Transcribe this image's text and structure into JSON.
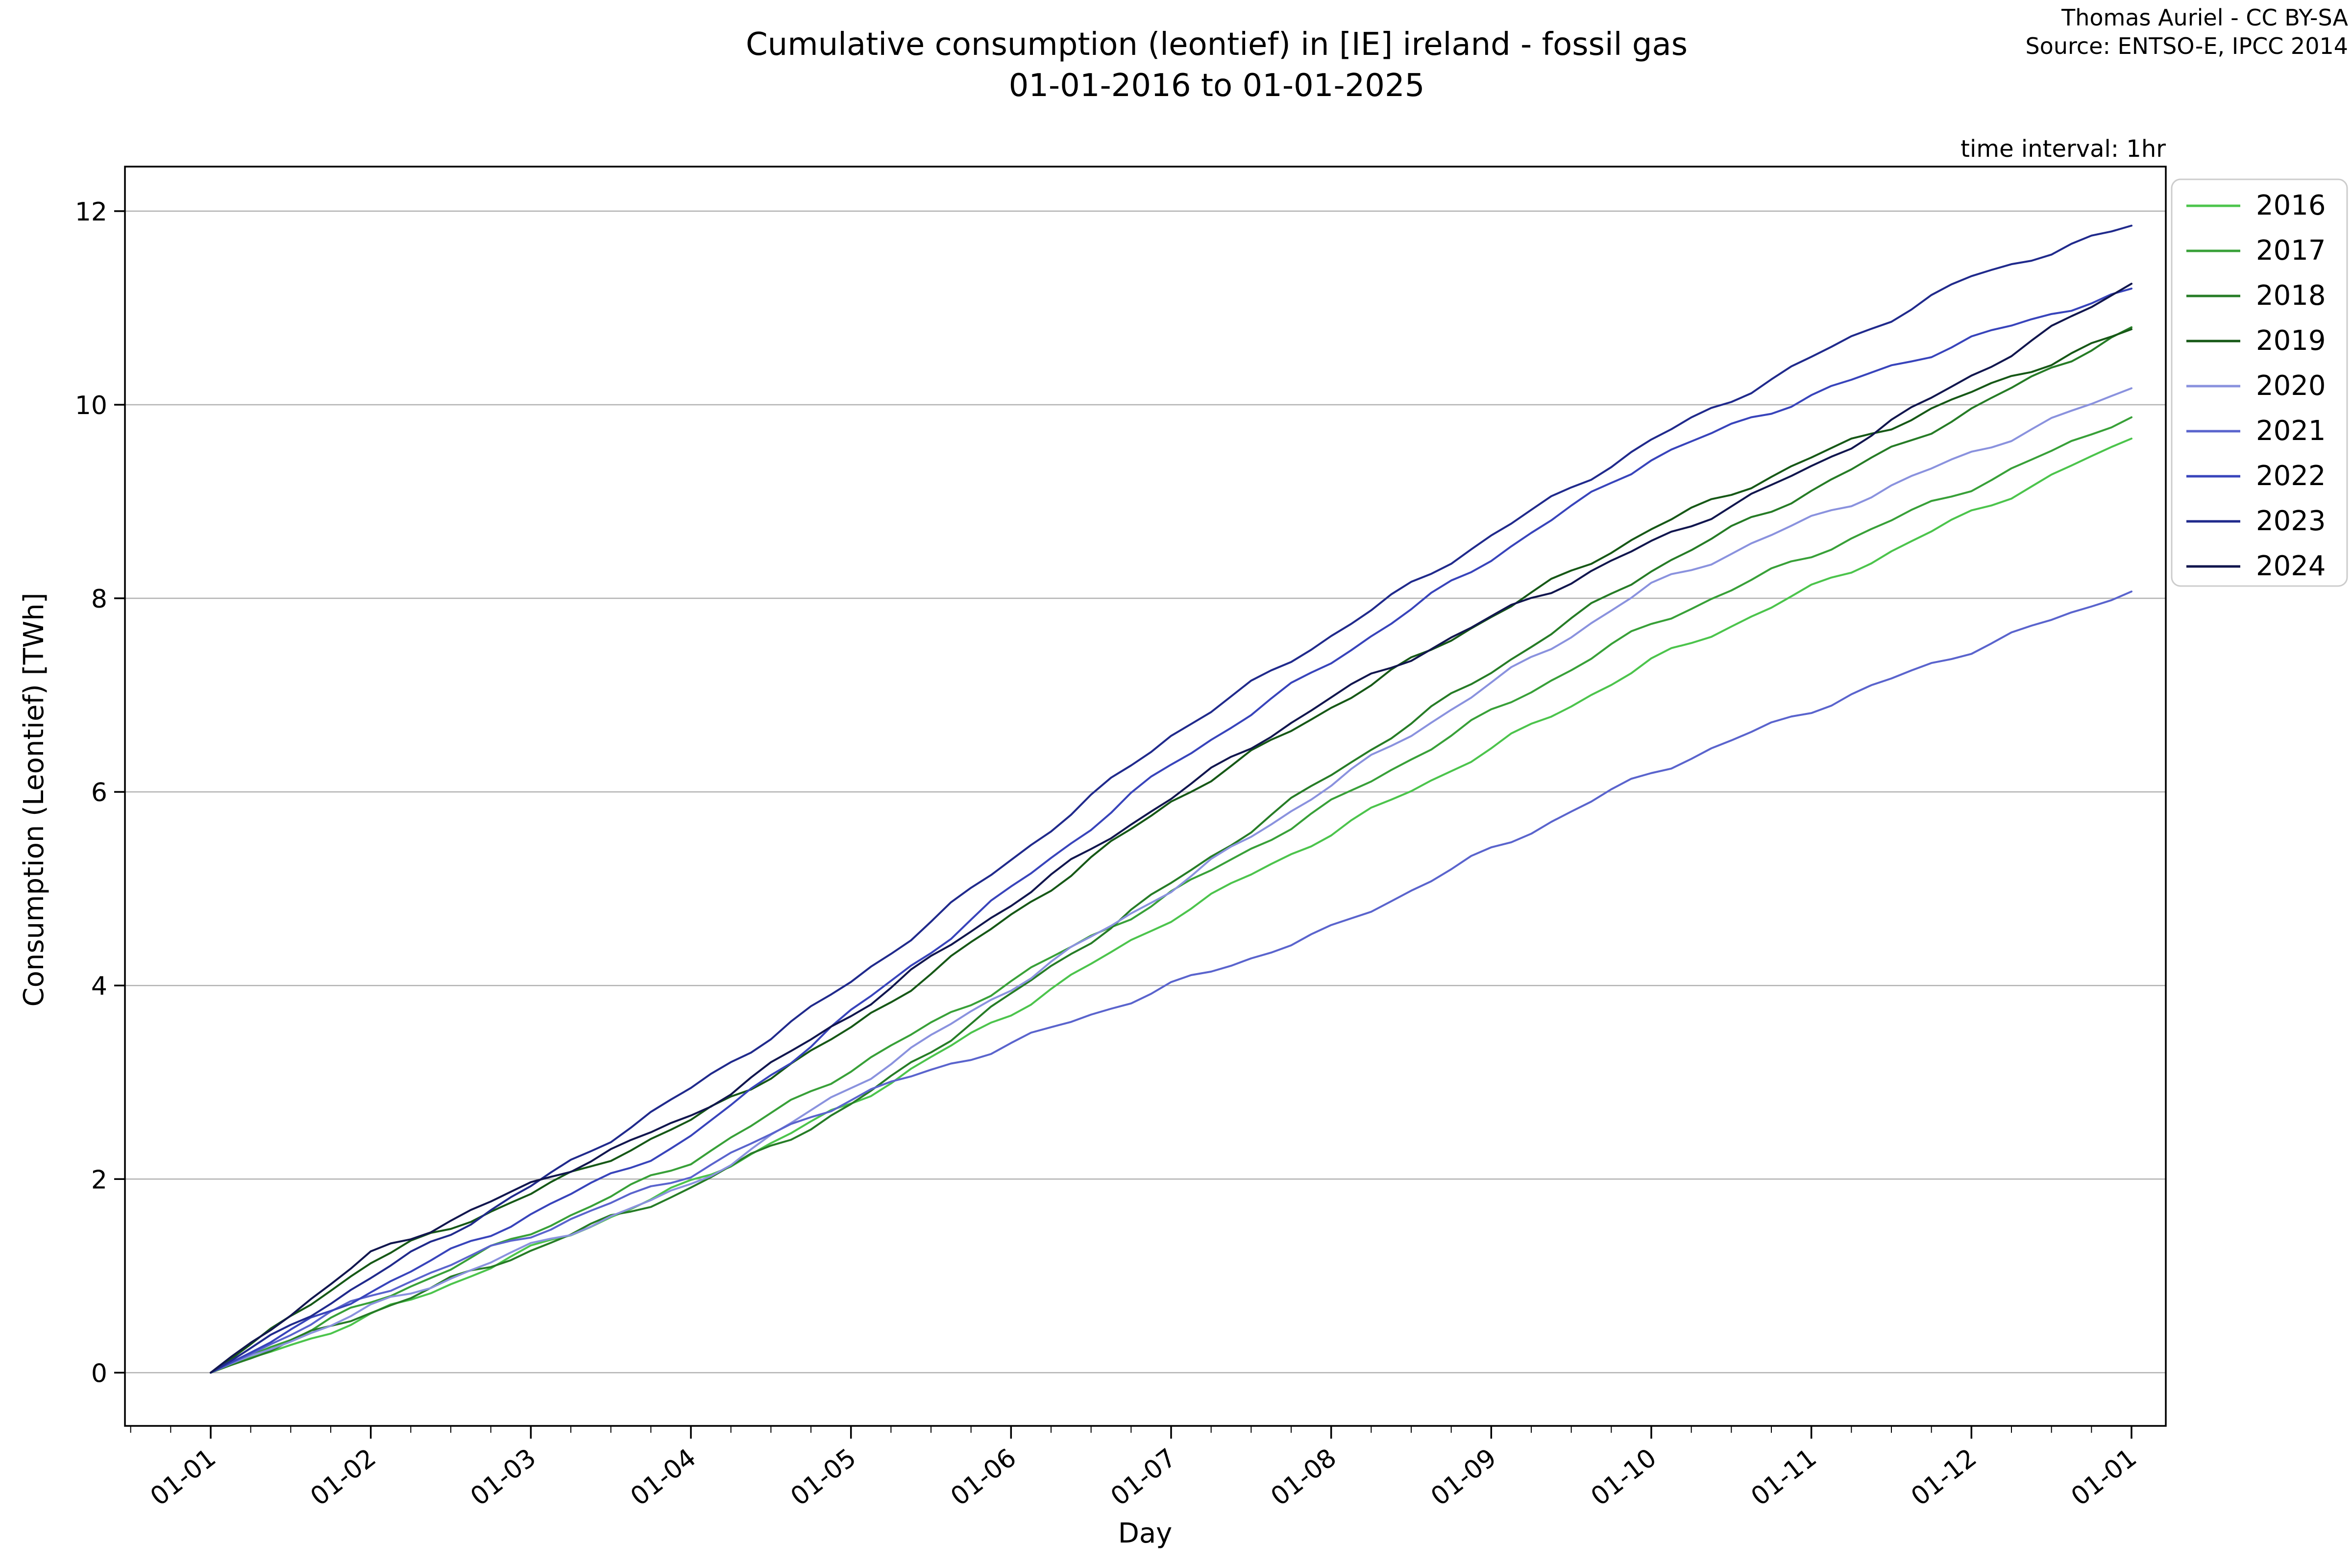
{
  "figure": {
    "title_line1": "Cumulative consumption (leontief) in [IE] ireland - fossil gas",
    "title_line2": "01-01-2016 to 01-01-2025",
    "attribution_line1": "Thomas Auriel - CC BY-SA",
    "attribution_line2": "Source: ENTSO-E, IPCC 2014",
    "time_interval_note": "time interval: 1hr",
    "xlabel": "Day",
    "ylabel": "Consumption (Leontief) [TWh]"
  },
  "chart_data": {
    "type": "line",
    "title": "Cumulative consumption (leontief) in [IE] ireland - fossil gas 01-01-2016 to 01-01-2025",
    "xlabel": "Day",
    "ylabel": "Consumption (Leontief) [TWh]",
    "x_tick_labels": [
      "01-01",
      "01-02",
      "01-03",
      "01-04",
      "01-05",
      "01-06",
      "01-07",
      "01-08",
      "01-09",
      "01-10",
      "01-11",
      "01-12",
      "01-01"
    ],
    "y_ticks": [
      0,
      2,
      4,
      6,
      8,
      10,
      12
    ],
    "ylim": [
      -0.55,
      12.46
    ],
    "grid": "horizontal",
    "legend_position": "outside-upper-right",
    "units": "TWh",
    "series": [
      {
        "name": "2016",
        "color": "#4cc44c",
        "values": [
          0,
          0.58,
          1.27,
          1.96,
          2.78,
          3.72,
          4.7,
          5.58,
          6.45,
          7.35,
          8.1,
          8.88,
          9.65
        ]
      },
      {
        "name": "2017",
        "color": "#38a038",
        "values": [
          0,
          0.72,
          1.45,
          2.19,
          3.14,
          4.05,
          4.95,
          5.88,
          6.82,
          7.73,
          8.45,
          9.15,
          9.87
        ]
      },
      {
        "name": "2018",
        "color": "#267c26",
        "values": [
          0,
          0.63,
          1.27,
          1.91,
          2.76,
          3.9,
          5.05,
          6.18,
          7.25,
          8.3,
          9.12,
          9.95,
          10.8
        ]
      },
      {
        "name": "2019",
        "color": "#165816",
        "values": [
          0,
          1.15,
          1.85,
          2.6,
          3.55,
          4.72,
          5.9,
          6.88,
          7.82,
          8.72,
          9.45,
          10.12,
          10.78
        ]
      },
      {
        "name": "2020",
        "color": "#8a92de",
        "values": [
          0,
          0.67,
          1.3,
          1.93,
          2.95,
          3.98,
          5.0,
          6.08,
          7.12,
          8.13,
          8.82,
          9.5,
          10.17
        ]
      },
      {
        "name": "2021",
        "color": "#5a64cd",
        "values": [
          0,
          0.8,
          1.43,
          2.06,
          2.84,
          3.4,
          4.0,
          4.58,
          5.4,
          6.2,
          6.85,
          7.47,
          8.07
        ]
      },
      {
        "name": "2022",
        "color": "#3844bb",
        "values": [
          0,
          0.85,
          1.64,
          2.43,
          3.72,
          5.0,
          6.28,
          7.35,
          8.42,
          9.45,
          10.1,
          10.68,
          11.2
        ]
      },
      {
        "name": "2023",
        "color": "#202a8c",
        "values": [
          0,
          0.98,
          1.92,
          2.93,
          4.03,
          5.3,
          6.59,
          7.62,
          8.65,
          9.63,
          10.48,
          11.32,
          11.85
        ]
      },
      {
        "name": "2024",
        "color": "#11164e",
        "values": [
          0,
          1.22,
          1.94,
          2.65,
          3.7,
          4.85,
          5.95,
          6.98,
          7.8,
          8.57,
          9.35,
          10.3,
          11.25
        ]
      }
    ]
  },
  "colors": {
    "background": "#ffffff",
    "spine": "#000000",
    "grid": "#b3b3b3",
    "legend_border": "#cccccc",
    "text": "#000000"
  }
}
